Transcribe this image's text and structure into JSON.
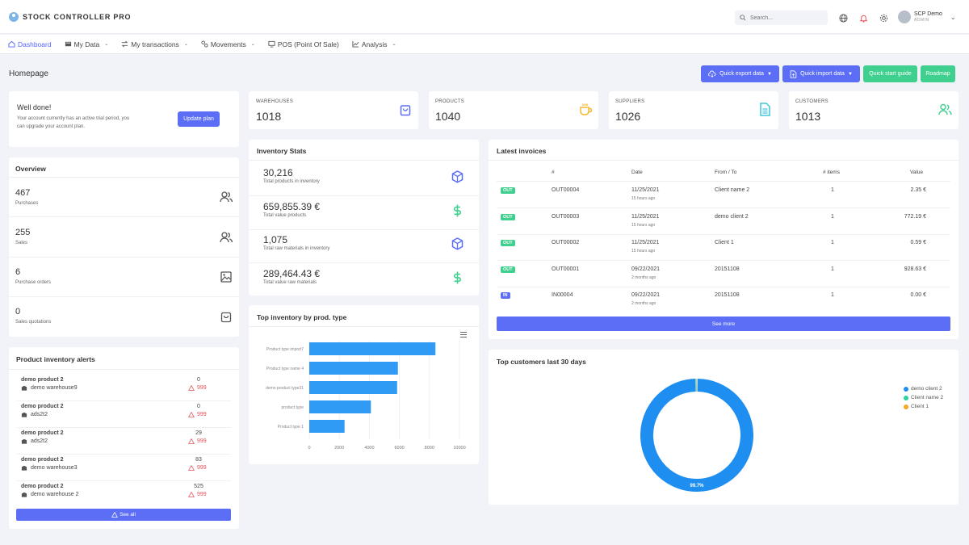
{
  "app": {
    "title": "STOCK CONTROLLER PRO"
  },
  "search": {
    "placeholder": "Search..."
  },
  "user": {
    "name": "SCP Demo",
    "role": "ADMIN"
  },
  "nav": [
    {
      "label": "Dashboard",
      "icon": "home-icon",
      "active": true
    },
    {
      "label": "My Data",
      "icon": "database-icon"
    },
    {
      "label": "My transactions",
      "icon": "transfer-icon"
    },
    {
      "label": "Movements",
      "icon": "movements-icon"
    },
    {
      "label": "POS (Point Of Sale)",
      "icon": "pos-icon"
    },
    {
      "label": "Analysis",
      "icon": "chart-icon"
    }
  ],
  "page": {
    "title": "Homepage"
  },
  "actions": {
    "export": "Quick export data",
    "import": "Quick import data",
    "guide": "Quick start guide",
    "roadmap": "Roadmap"
  },
  "trial": {
    "heading": "Well done!",
    "line1": "Your account currently has an active trial period, you",
    "line2": "can upgrade your account plan.",
    "button": "Update plan"
  },
  "stats": [
    {
      "label": "WAREHOUSES",
      "value": "1018",
      "icon": "bag-icon",
      "color": "#5b6ef5"
    },
    {
      "label": "PRODUCTS",
      "value": "1040",
      "icon": "coffee-icon",
      "color": "#f5b731"
    },
    {
      "label": "SUPPLIERS",
      "value": "1026",
      "icon": "document-icon",
      "color": "#3cc8d9"
    },
    {
      "label": "CUSTOMERS",
      "value": "1013",
      "icon": "users-icon",
      "color": "#3fcf8e"
    }
  ],
  "overview": {
    "title": "Overview",
    "items": [
      {
        "value": "467",
        "label": "Purchases",
        "icon": "users-icon"
      },
      {
        "value": "255",
        "label": "Sales",
        "icon": "users-icon"
      },
      {
        "value": "6",
        "label": "Purchase orders",
        "icon": "image-icon"
      },
      {
        "value": "0",
        "label": "Sales quotations",
        "icon": "bag-icon"
      }
    ]
  },
  "alerts": {
    "title": "Product inventory alerts",
    "items": [
      {
        "product": "demo product 2",
        "warehouse": "demo warehouse9",
        "qty": "0",
        "limit": "999"
      },
      {
        "product": "demo product 2",
        "warehouse": "ads2t2",
        "qty": "0",
        "limit": "999"
      },
      {
        "product": "demo product 2",
        "warehouse": "ads2t2",
        "qty": "29",
        "limit": "999"
      },
      {
        "product": "demo product 2",
        "warehouse": "demo warehouse3",
        "qty": "83",
        "limit": "999"
      },
      {
        "product": "demo product 2",
        "warehouse": "demo warehouse 2",
        "qty": "525",
        "limit": "999"
      }
    ],
    "button": "See all"
  },
  "inventory": {
    "title": "Inventory Stats",
    "items": [
      {
        "value": "30,216",
        "label": "Total products in inventory",
        "icon": "box-icon",
        "color": "#5b6ef5"
      },
      {
        "value": "659,855.39 €",
        "label": "Total value products",
        "icon": "dollar-icon",
        "color": "#3fcf8e"
      },
      {
        "value": "1,075",
        "label": "Total raw materials in inventory",
        "icon": "box-icon",
        "color": "#5b6ef5"
      },
      {
        "value": "289,464.43 €",
        "label": "Total value raw materials",
        "icon": "dollar-icon",
        "color": "#3fcf8e"
      }
    ]
  },
  "invoices": {
    "title": "Latest invoices",
    "headers": [
      "#",
      "Date",
      "From / To",
      "# items",
      "Value"
    ],
    "rows": [
      {
        "type": "OUT",
        "id": "OUT00004",
        "date": "11/25/2021",
        "ago": "15 hours ago",
        "party": "Client name 2",
        "items": "1",
        "value": "2.35 €"
      },
      {
        "type": "OUT",
        "id": "OUT00003",
        "date": "11/25/2021",
        "ago": "15 hours ago",
        "party": "demo client 2",
        "items": "1",
        "value": "772.19 €"
      },
      {
        "type": "OUT",
        "id": "OUT00002",
        "date": "11/25/2021",
        "ago": "15 hours ago",
        "party": "Client 1",
        "items": "1",
        "value": "0.59 €"
      },
      {
        "type": "OUT",
        "id": "OUT00001",
        "date": "09/22/2021",
        "ago": "2 months ago",
        "party": "20151108",
        "items": "1",
        "value": "928.63 €"
      },
      {
        "type": "IN",
        "id": "IN00004",
        "date": "09/22/2021",
        "ago": "2 months ago",
        "party": "20151108",
        "items": "1",
        "value": "0.00 €"
      }
    ],
    "button": "See more"
  },
  "colors": {
    "primary": "#5b6ef5",
    "success": "#3fcf8e",
    "danger": "#e5545a",
    "bar": "#2f9bf5"
  },
  "chart_data": [
    {
      "type": "bar",
      "orientation": "horizontal",
      "title": "Top inventory by prod. type",
      "categories": [
        "Product type import7",
        "Product type name 4",
        "demo product type31",
        "product type",
        "Product type 1"
      ],
      "values": [
        8400,
        5900,
        5850,
        4100,
        2350
      ],
      "xlim": [
        0,
        10000
      ],
      "xticks": [
        "0",
        "2000",
        "4000",
        "6000",
        "8000",
        "10000"
      ]
    },
    {
      "type": "pie",
      "title": "Top customers last 30 days",
      "style": "donut",
      "series": [
        {
          "name": "demo client 2",
          "value": 99.7,
          "color": "#1f8ef1"
        },
        {
          "name": "Client name 2",
          "value": 0.2,
          "color": "#2bd3a0"
        },
        {
          "name": "Client 1",
          "value": 0.1,
          "color": "#f5a623"
        }
      ],
      "data_label": "99.7%"
    }
  ]
}
